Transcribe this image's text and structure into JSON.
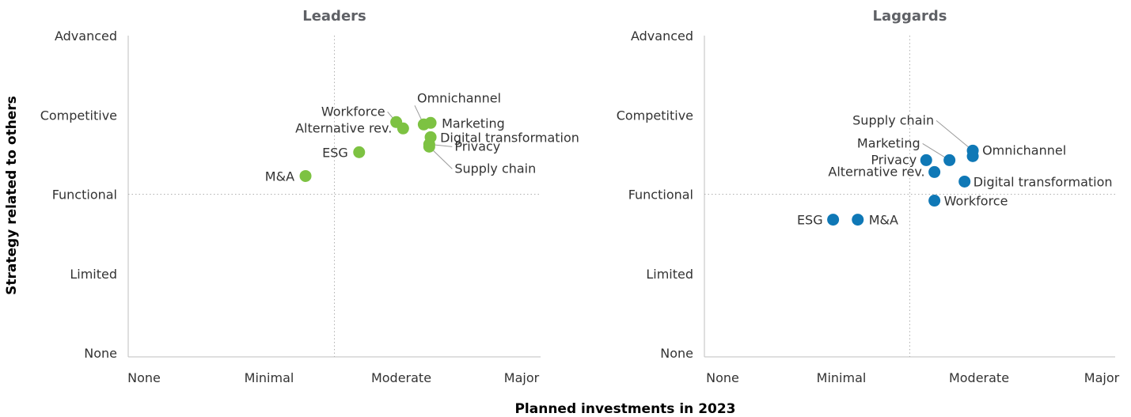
{
  "chart_data": [
    {
      "type": "scatter",
      "title": "Leaders",
      "color": "#7dc242",
      "x_categories": [
        "None",
        "Minimal",
        "Moderate",
        "Major"
      ],
      "y_categories": [
        "None",
        "Limited",
        "Functional",
        "Competitive",
        "Advanced"
      ],
      "xlim": [
        0,
        3
      ],
      "ylim": [
        0,
        4
      ],
      "guide_x": 1.5,
      "guide_y": 2,
      "grid": false,
      "points": [
        {
          "label": "Workforce",
          "x": 1.95,
          "y": 2.91
        },
        {
          "label": "Alternative rev.",
          "x": 2.0,
          "y": 2.83
        },
        {
          "label": "Omnichannel",
          "x": 2.15,
          "y": 2.88
        },
        {
          "label": "Marketing",
          "x": 2.2,
          "y": 2.9
        },
        {
          "label": "Digital transformation",
          "x": 2.2,
          "y": 2.72
        },
        {
          "label": "Privacy",
          "x": 2.19,
          "y": 2.63
        },
        {
          "label": "Supply chain",
          "x": 2.19,
          "y": 2.6
        },
        {
          "label": "ESG",
          "x": 1.68,
          "y": 2.53
        },
        {
          "label": "M&A",
          "x": 1.29,
          "y": 2.23
        }
      ]
    },
    {
      "type": "scatter",
      "title": "Laggards",
      "color": "#0f78b6",
      "x_categories": [
        "None",
        "Minimal",
        "Moderate",
        "Major"
      ],
      "y_categories": [
        "None",
        "Limited",
        "Functional",
        "Competitive",
        "Advanced"
      ],
      "xlim": [
        0,
        3
      ],
      "ylim": [
        0,
        4
      ],
      "guide_x": 1.5,
      "guide_y": 2,
      "grid": false,
      "points": [
        {
          "label": "Supply chain",
          "x": 1.96,
          "y": 2.55
        },
        {
          "label": "Omnichannel",
          "x": 1.96,
          "y": 2.48
        },
        {
          "label": "Marketing",
          "x": 1.79,
          "y": 2.43
        },
        {
          "label": "Privacy",
          "x": 1.62,
          "y": 2.43
        },
        {
          "label": "Alternative rev.",
          "x": 1.68,
          "y": 2.28
        },
        {
          "label": "Digital transformation",
          "x": 1.9,
          "y": 2.16
        },
        {
          "label": "Workforce",
          "x": 1.68,
          "y": 1.92
        },
        {
          "label": "ESG",
          "x": 0.94,
          "y": 1.68
        },
        {
          "label": "M&A",
          "x": 1.12,
          "y": 1.68
        }
      ]
    }
  ],
  "axes": {
    "ylabel": "Strategy related to others",
    "xlabel": "Planned investments in 2023"
  }
}
